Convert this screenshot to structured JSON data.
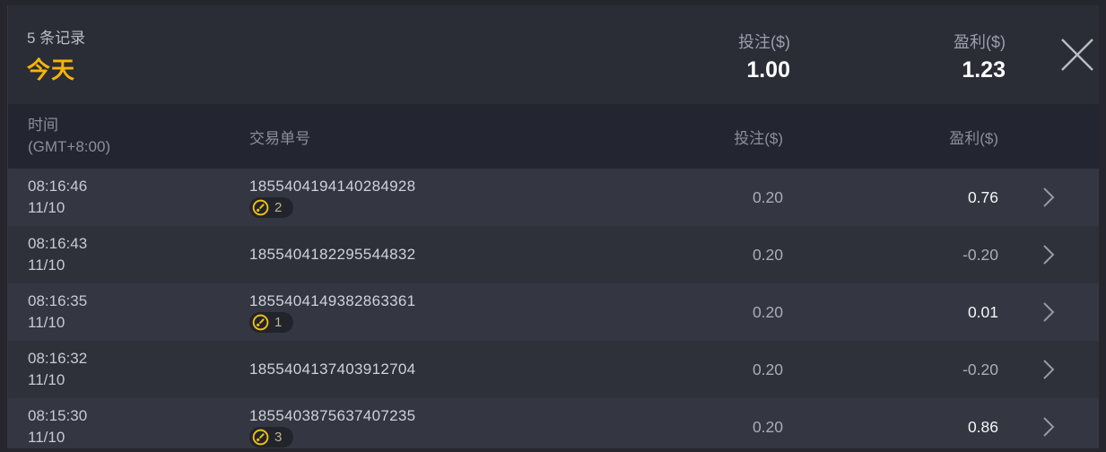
{
  "summary": {
    "records_label": "5 条记录",
    "period": "今天",
    "bet_label": "投注($)",
    "bet_total": "1.00",
    "profit_label": "盈利($)",
    "profit_total": "1.23"
  },
  "table": {
    "headers": {
      "time_line1": "时间",
      "time_line2": "(GMT+8:00)",
      "order": "交易单号",
      "bet": "投注($)",
      "profit": "盈利($)"
    },
    "rows": [
      {
        "time": "08:16:46",
        "date": "11/10",
        "order_id": "1855404194140284928",
        "badge": "2",
        "bet": "0.20",
        "profit": "0.76",
        "profit_positive": true
      },
      {
        "time": "08:16:43",
        "date": "11/10",
        "order_id": "1855404182295544832",
        "badge": null,
        "bet": "0.20",
        "profit": "-0.20",
        "profit_positive": false
      },
      {
        "time": "08:16:35",
        "date": "11/10",
        "order_id": "1855404149382863361",
        "badge": "1",
        "bet": "0.20",
        "profit": "0.01",
        "profit_positive": true
      },
      {
        "time": "08:16:32",
        "date": "11/10",
        "order_id": "1855404137403912704",
        "badge": null,
        "bet": "0.20",
        "profit": "-0.20",
        "profit_positive": false
      },
      {
        "time": "08:15:30",
        "date": "11/10",
        "order_id": "1855403875637407235",
        "badge": "3",
        "bet": "0.20",
        "profit": "0.86",
        "profit_positive": true
      }
    ]
  },
  "icons": {
    "close": "close-icon",
    "chevron": "chevron-right-icon",
    "badge": "coin-icon"
  },
  "colors": {
    "accent_gold": "#f6b40a",
    "icon_gold": "#f0c011",
    "positive_text": "#f5f6f8",
    "muted_text": "#a9adb8",
    "header_bg": "#2a2c36",
    "thead_bg": "#232530",
    "row_odd_bg": "#343641",
    "row_even_bg": "#2f313a"
  }
}
